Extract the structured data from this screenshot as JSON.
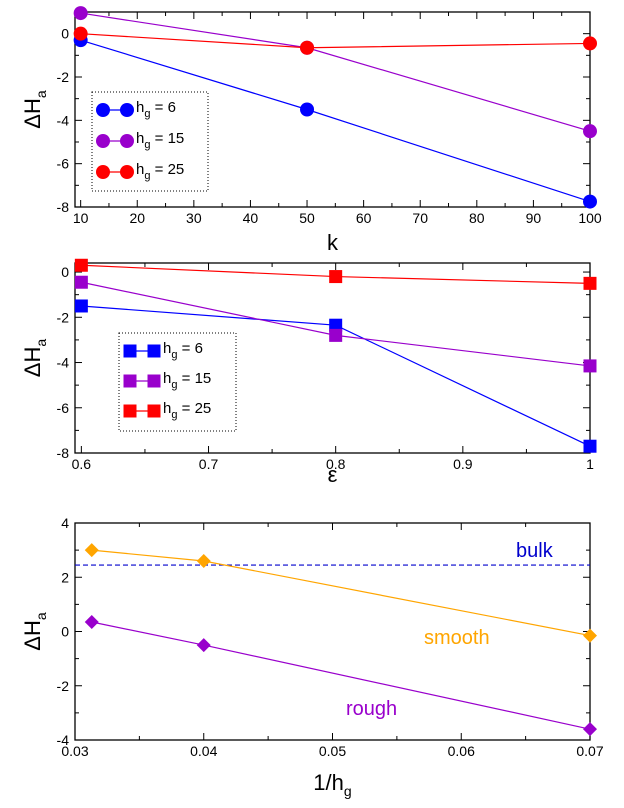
{
  "chart_data": [
    {
      "type": "line",
      "x_label": "k",
      "y_label": {
        "main": "ΔH",
        "sub": "a"
      },
      "x_ticks": [
        "10",
        "20",
        "30",
        "40",
        "50",
        "60",
        "70",
        "80",
        "90",
        "100"
      ],
      "y_ticks": [
        "0",
        "-2",
        "-4",
        "-6",
        "-8"
      ],
      "xlim": [
        9,
        100
      ],
      "ylim": [
        -8,
        1.0
      ],
      "marker": "circle",
      "legend_placement": "left",
      "series": [
        {
          "name": {
            "main": "h",
            "sub": "g",
            "rest": " = 6"
          },
          "color": "#0000ff",
          "x": [
            10,
            50,
            100
          ],
          "y": [
            -0.3,
            -3.5,
            -7.75
          ]
        },
        {
          "name": {
            "main": "h",
            "sub": "g",
            "rest": " = 15"
          },
          "color": "#9900cc",
          "x": [
            10,
            50,
            100
          ],
          "y": [
            0.95,
            -0.65,
            -4.5
          ]
        },
        {
          "name": {
            "main": "h",
            "sub": "g",
            "rest": " = 25"
          },
          "color": "#ff0000",
          "x": [
            10,
            50,
            100
          ],
          "y": [
            0.0,
            -0.65,
            -0.45
          ]
        }
      ]
    },
    {
      "type": "line",
      "x_label": "ε",
      "y_label": {
        "main": "ΔH",
        "sub": "a"
      },
      "x_ticks": [
        "0.6",
        "0.7",
        "0.8",
        "0.9",
        "1"
      ],
      "y_ticks": [
        "0",
        "-2",
        "-4",
        "-6",
        "-8"
      ],
      "xlim": [
        0.595,
        1.0
      ],
      "ylim": [
        -8,
        0.4
      ],
      "marker": "square",
      "legend_placement": "left",
      "series": [
        {
          "name": {
            "main": "h",
            "sub": "g",
            "rest": " = 6"
          },
          "color": "#0000ff",
          "x": [
            0.6,
            0.8,
            1.0
          ],
          "y": [
            -1.5,
            -2.35,
            -7.7
          ]
        },
        {
          "name": {
            "main": "h",
            "sub": "g",
            "rest": " = 15"
          },
          "color": "#9900cc",
          "x": [
            0.6,
            0.8,
            1.0
          ],
          "y": [
            -0.45,
            -2.8,
            -4.15
          ]
        },
        {
          "name": {
            "main": "h",
            "sub": "g",
            "rest": "  = 25"
          },
          "color": "#ff0000",
          "x": [
            0.6,
            0.8,
            1.0
          ],
          "y": [
            0.3,
            -0.2,
            -0.5
          ]
        }
      ]
    },
    {
      "type": "line",
      "x_label": {
        "main": "1/h",
        "sub": "g"
      },
      "y_label": {
        "main": "ΔH",
        "sub": "a"
      },
      "x_ticks": [
        "0.03",
        "0.04",
        "0.05",
        "0.06",
        "0.07"
      ],
      "y_ticks": [
        "4",
        "2",
        "0",
        "-2",
        "-4"
      ],
      "xlim": [
        0.03,
        0.07
      ],
      "ylim": [
        -4,
        4
      ],
      "marker": "diamond",
      "reference_line": {
        "label": "bulk",
        "y": 2.45,
        "color": "#0000cc",
        "style": "dashed"
      },
      "series": [
        {
          "name": "smooth",
          "color": "#ffa500",
          "x": [
            0.0313,
            0.04,
            0.07
          ],
          "y": [
            3.0,
            2.6,
            -0.15
          ]
        },
        {
          "name": "rough",
          "color": "#9900cc",
          "x": [
            0.0313,
            0.04,
            0.07
          ],
          "y": [
            0.35,
            -0.5,
            -3.6
          ]
        }
      ]
    }
  ]
}
